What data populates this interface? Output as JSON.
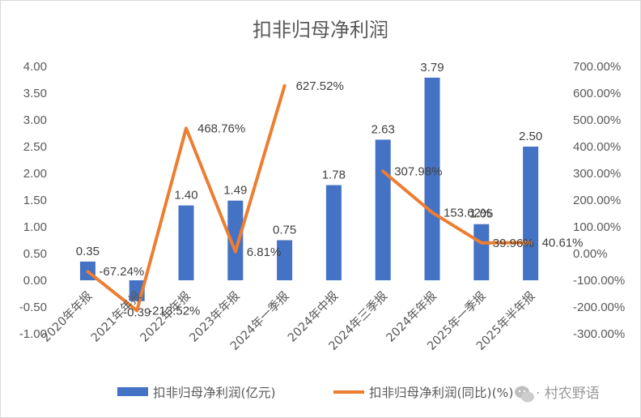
{
  "chart_data": {
    "type": "bar+line",
    "title": "扣非归母净利润",
    "categories": [
      "2020年年报",
      "2021年年报",
      "2022年年报",
      "2023年年报",
      "2024年一季报",
      "2024年中报",
      "2024年三季报",
      "2024年年报",
      "2025年一季报",
      "2025年半年报"
    ],
    "series": [
      {
        "name": "扣非归母净利润(亿元)",
        "type": "bar",
        "axis": "left",
        "color": "#4472C4",
        "values": [
          0.35,
          -0.39,
          1.4,
          1.49,
          0.75,
          1.78,
          2.63,
          3.79,
          1.05,
          2.5
        ],
        "labels": [
          "0.35",
          "-0.39",
          "1.40",
          "1.49",
          "0.75",
          "1.78",
          "2.63",
          "3.79",
          "1.05",
          "2.50"
        ]
      },
      {
        "name": "扣非归母净利润(同比)(%)",
        "type": "line",
        "axis": "right",
        "color": "#ED7D31",
        "segments": [
          [
            0,
            4
          ],
          [
            6,
            9
          ]
        ],
        "values": [
          -67.24,
          -213.52,
          468.76,
          6.81,
          627.52,
          null,
          307.98,
          153.62,
          39.96,
          40.61
        ],
        "labels": [
          "-67.24%",
          "-213.52%",
          "468.76%",
          "6.81%",
          "627.52%",
          "",
          "307.98%",
          "153.62%",
          "39.96%",
          "40.61%"
        ]
      }
    ],
    "y_left": {
      "min": -1.0,
      "max": 4.0,
      "ticks": [
        "-1.00",
        "-0.50",
        "0.00",
        "0.50",
        "1.00",
        "1.50",
        "2.00",
        "2.50",
        "3.00",
        "3.50",
        "4.00"
      ]
    },
    "y_right": {
      "min": -300,
      "max": 700,
      "ticks": [
        "-300.00%",
        "-200.00%",
        "-100.00%",
        "0.00%",
        "100.00%",
        "200.00%",
        "300.00%",
        "400.00%",
        "500.00%",
        "600.00%",
        "700.00%"
      ]
    },
    "grid": false,
    "legend": "bottom"
  },
  "watermark": {
    "icon": "wechat-icon",
    "text": "· 村农野语"
  }
}
